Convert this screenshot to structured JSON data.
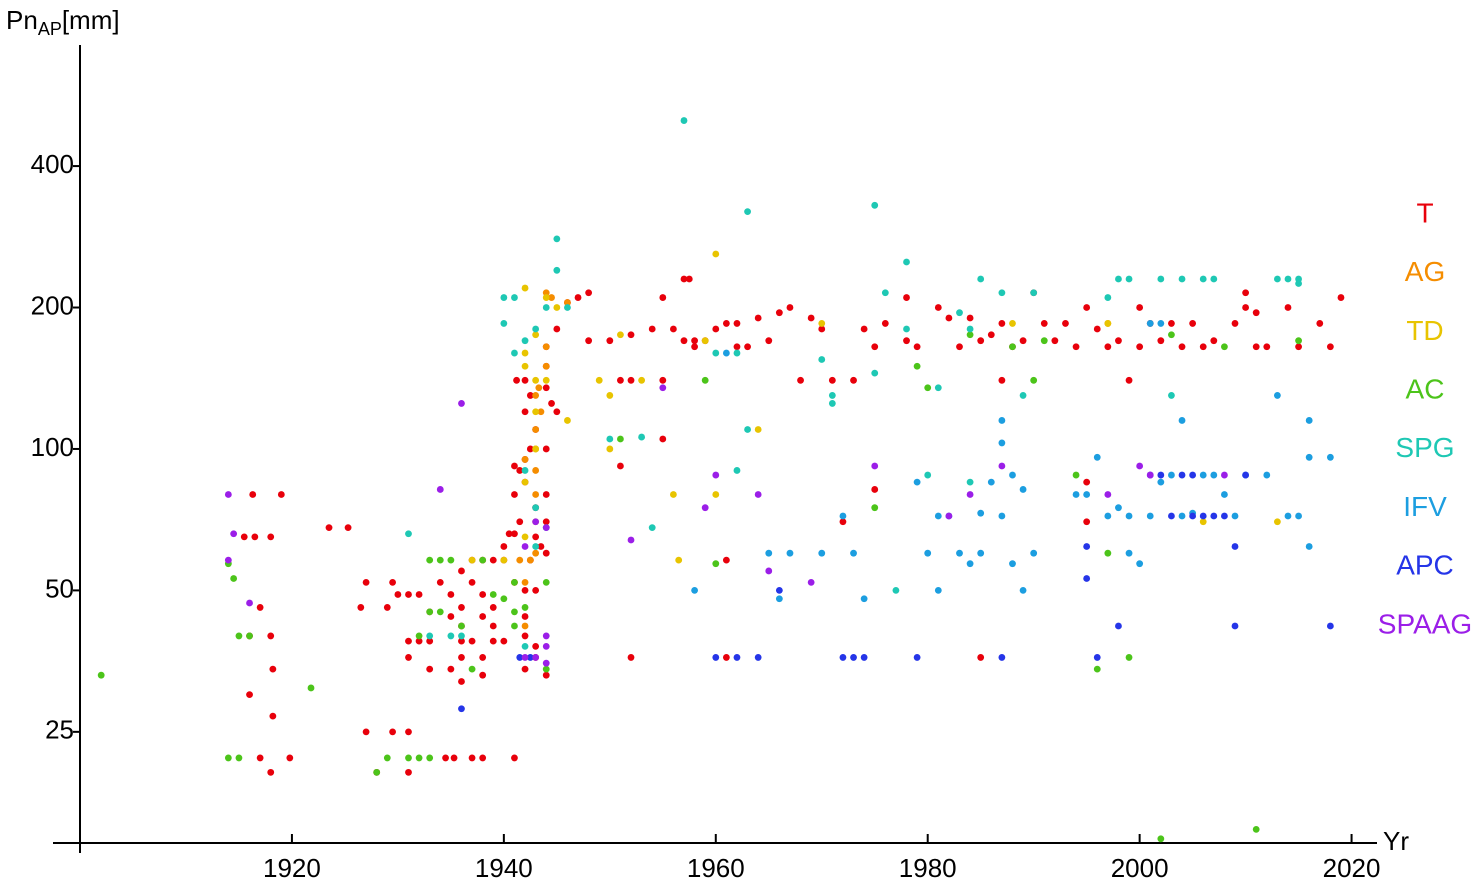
{
  "chart_data": {
    "type": "scatter",
    "ylabel_parts": [
      "Pn",
      "AP",
      "[mm]"
    ],
    "xlabel": "Yr",
    "log_y": true,
    "xlim": [
      1900,
      2022.4
    ],
    "ylim": [
      14.5,
      724
    ],
    "xticks": [
      1920,
      1940,
      1960,
      1980,
      2000,
      2020
    ],
    "yticks": [
      25,
      50,
      100,
      200,
      400
    ],
    "legend": "right",
    "series": [
      {
        "name": "T",
        "color": "#e8000b",
        "x": [
          1916.3,
          1919,
          1915.5,
          1916.5,
          1918,
          1917,
          1916,
          1918,
          1918.2,
          1916,
          1918.2,
          1917,
          1919.8,
          1918,
          1923.5,
          1925.3,
          1927,
          1926.5,
          1929.5,
          1930,
          1929,
          1931,
          1932,
          1933,
          1931,
          1932,
          1933,
          1931,
          1933,
          1927,
          1929.5,
          1931,
          1928,
          1931,
          1934.5,
          1935.3,
          1937,
          1938,
          1941,
          1934,
          1935,
          1936,
          1935,
          1936,
          1937,
          1937,
          1938,
          1939,
          1940,
          1938,
          1939,
          1938,
          1939,
          1936,
          1936,
          1937,
          1939,
          1940,
          1936,
          1938,
          1935,
          1936,
          1938,
          1940,
          1940.5,
          1941,
          1941.5,
          1941,
          1941,
          1941.5,
          1942,
          1942,
          1941.2,
          1942,
          1942.5,
          1942,
          1943,
          1942.5,
          1943,
          1943,
          1942.5,
          1943.5,
          1944,
          1944,
          1944,
          1944,
          1944.5,
          1944,
          1944,
          1945,
          1944,
          1945,
          1946,
          1947,
          1948,
          1948,
          1942,
          1941,
          1943,
          1942,
          1942,
          1943,
          1942,
          1943,
          1944,
          1951,
          1952,
          1951,
          1950,
          1952,
          1952,
          1954,
          1955,
          1955,
          1955,
          1956,
          1957,
          1957.5,
          1957,
          1958,
          1958,
          1959,
          1960,
          1961,
          1961,
          1962,
          1962,
          1963,
          1964,
          1965,
          1966,
          1967,
          1968,
          1969,
          1970,
          1971,
          1972,
          1973,
          1974,
          1975,
          1975,
          1976,
          1978,
          1978,
          1979,
          1981,
          1982,
          1983,
          1984,
          1985,
          1986,
          1987,
          1987,
          1988,
          1989,
          1990,
          1991,
          1992,
          1993,
          1994,
          1995,
          1995,
          1995,
          1996,
          1997,
          1998,
          1999,
          2000,
          2000,
          2001,
          2002,
          2003,
          2004,
          2005,
          2006,
          2007,
          2009,
          2010,
          2010,
          2011,
          2011,
          2012,
          2014,
          2015,
          2017,
          2018,
          2019,
          1985,
          1961
        ],
        "values": [
          80,
          80,
          65,
          65,
          65,
          46,
          40,
          40,
          34,
          30,
          27,
          22,
          22,
          20.5,
          68,
          68,
          52,
          46,
          52,
          49,
          46,
          49,
          49,
          45,
          39,
          39,
          39,
          36,
          34,
          25,
          25,
          25,
          20.5,
          20.5,
          22,
          22,
          22,
          22,
          22,
          52,
          49,
          46,
          44,
          55,
          52,
          58,
          58,
          58,
          58,
          49,
          46,
          44,
          42,
          42,
          39,
          39,
          39,
          39,
          36,
          36,
          34,
          32,
          33,
          62,
          66,
          66,
          70,
          80,
          92,
          90,
          85,
          95,
          140,
          140,
          130,
          120,
          110,
          100,
          75,
          65,
          58,
          62,
          60,
          70,
          80,
          100,
          125,
          135,
          150,
          120,
          165,
          180,
          205,
          210,
          215,
          170,
          50,
          52,
          50,
          44,
          40,
          38,
          34,
          36,
          33,
          140,
          140,
          92,
          170,
          175,
          36,
          180,
          210,
          140,
          105,
          180,
          230,
          230,
          170,
          170,
          165,
          170,
          180,
          185,
          58,
          165,
          185,
          165,
          190,
          170,
          195,
          200,
          140,
          190,
          180,
          140,
          70,
          140,
          180,
          165,
          82,
          185,
          210,
          170,
          165,
          200,
          190,
          165,
          190,
          170,
          175,
          140,
          185,
          165,
          170,
          215,
          185,
          170,
          185,
          165,
          200,
          85,
          70,
          180,
          165,
          170,
          140,
          200,
          165,
          185,
          170,
          185,
          165,
          185,
          165,
          170,
          185,
          200,
          215,
          195,
          165,
          165,
          200,
          165,
          185,
          165,
          210,
          36,
          36
        ]
      },
      {
        "name": "AG",
        "color": "#f58d00",
        "x": [
          1941,
          1942,
          1941.5,
          1942.5,
          1943,
          1943,
          1943,
          1943,
          1943,
          1943.5,
          1943,
          1943.3,
          1944,
          1944,
          1944,
          1944.5,
          1946,
          1943,
          1942,
          1942,
          1997
        ],
        "values": [
          52,
          52,
          58,
          58,
          60,
          80,
          90,
          100,
          110,
          120,
          130,
          135,
          150,
          165,
          215,
          210,
          205,
          70,
          42,
          95,
          185
        ]
      },
      {
        "name": "TD",
        "color": "#e8c400",
        "x": [
          1942,
          1942,
          1943,
          1943,
          1944,
          1944,
          1945,
          1946,
          1942,
          1949,
          1950,
          1950,
          1951,
          1953,
          1956,
          1956.5,
          1959,
          1960,
          1960,
          1964,
          1970,
          1988,
          1997,
          2006,
          2013,
          1937,
          1942,
          1942,
          1943,
          1943,
          1940
        ],
        "values": [
          220,
          160,
          175,
          120,
          140,
          210,
          200,
          115,
          150,
          140,
          130,
          100,
          175,
          140,
          80,
          58,
          170,
          80,
          260,
          110,
          185,
          185,
          185,
          70,
          70,
          58,
          85,
          65,
          140,
          100,
          58
        ]
      },
      {
        "name": "AC",
        "color": "#4cc41a",
        "x": [
          1902,
          1914,
          1915,
          1914,
          1914.5,
          1915,
          1916,
          1921.8,
          1928,
          1929,
          1931,
          1932,
          1933,
          1932,
          1933,
          1934,
          1935,
          1933,
          1934,
          1936,
          1937,
          1939,
          1940,
          1941,
          1941,
          1942,
          1944,
          1944,
          1951,
          1959,
          1960,
          1975,
          1979,
          1980,
          1984,
          1988,
          1990,
          1991,
          1994,
          1996,
          1997,
          1999,
          2002,
          2003,
          2008,
          2011,
          2015,
          1941,
          1938
        ],
        "values": [
          33,
          22,
          22,
          57,
          53,
          40,
          40,
          31,
          20.5,
          22,
          22,
          22,
          22,
          40,
          58,
          58,
          58,
          45,
          45,
          42,
          34,
          49,
          48,
          52,
          42,
          46,
          52,
          34,
          105,
          140,
          57,
          75,
          150,
          135,
          175,
          165,
          140,
          170,
          88,
          34,
          60,
          36,
          14.8,
          175,
          165,
          15.5,
          170,
          45,
          58
        ]
      },
      {
        "name": "SPG",
        "color": "#1ec8b4",
        "x": [
          1931,
          1940,
          1941,
          1940,
          1941,
          1942,
          1943,
          1944,
          1945,
          1945,
          1942,
          1943,
          1944,
          1950,
          1953,
          1954,
          1957,
          1960,
          1962,
          1963,
          1963,
          1962,
          1970,
          1971,
          1971,
          1975,
          1975,
          1976,
          1977,
          1978,
          1978,
          1981,
          1983,
          1984,
          1985,
          1987,
          1989,
          1990,
          1997,
          1998,
          1999,
          2002,
          2004,
          2006,
          2007,
          2013,
          2014,
          2015,
          2015,
          2003,
          1936,
          1935,
          1933,
          1943,
          1942,
          1946,
          1980,
          1984
        ],
        "values": [
          66,
          210,
          210,
          185,
          160,
          170,
          180,
          200,
          240,
          280,
          90,
          75,
          68,
          105,
          106,
          68,
          500,
          160,
          160,
          320,
          110,
          90,
          155,
          130,
          125,
          330,
          145,
          215,
          50,
          250,
          180,
          135,
          195,
          180,
          230,
          215,
          130,
          215,
          210,
          230,
          230,
          230,
          230,
          230,
          230,
          230,
          230,
          230,
          225,
          130,
          40,
          40,
          40,
          62,
          38,
          200,
          88,
          85
        ]
      },
      {
        "name": "IFV",
        "color": "#1c9ee0",
        "x": [
          1958,
          1961,
          1965,
          1966,
          1967,
          1970,
          1972,
          1973,
          1974,
          1979,
          1980,
          1981,
          1981,
          1982,
          1983,
          1984,
          1985,
          1985,
          1986,
          1987,
          1987,
          1987,
          1988,
          1988,
          1989,
          1989,
          1990,
          1994,
          1995,
          1996,
          1997,
          1998,
          1999,
          2000,
          2001,
          2002,
          2003,
          2004,
          2005,
          2006,
          2007,
          2008,
          2009,
          2010,
          2012,
          2013,
          2014,
          2015,
          2016,
          2016,
          2016,
          2018,
          2004,
          2001,
          2002,
          1999
        ],
        "values": [
          50,
          160,
          60,
          48,
          60,
          60,
          72,
          60,
          48,
          85,
          60,
          72,
          50,
          72,
          60,
          57,
          60,
          73,
          85,
          115,
          103,
          72,
          57,
          88,
          50,
          82,
          60,
          80,
          80,
          96,
          72,
          75,
          60,
          57,
          72,
          85,
          88,
          72,
          73,
          88,
          88,
          80,
          72,
          88,
          88,
          130,
          72,
          72,
          115,
          96,
          62,
          96,
          115,
          185,
          185,
          72
        ]
      },
      {
        "name": "APC",
        "color": "#2535e8",
        "x": [
          1936,
          1941.5,
          1942.5,
          1960,
          1962,
          1964,
          1966,
          1972,
          1973,
          1974,
          1979,
          1987,
          1995,
          1995,
          1996,
          1998,
          2001,
          2002,
          2004,
          2005,
          2006,
          2007,
          2008,
          2009,
          2009,
          2010,
          2018,
          2003,
          2005
        ],
        "values": [
          28,
          36,
          36,
          36,
          36,
          36,
          50,
          36,
          36,
          36,
          36,
          36,
          53,
          62,
          36,
          42,
          88,
          88,
          88,
          88,
          72,
          72,
          72,
          62,
          42,
          88,
          42,
          72,
          72
        ]
      },
      {
        "name": "SPAAG",
        "color": "#9b1ee8",
        "x": [
          1914,
          1914,
          1914.5,
          1916,
          1934,
          1936,
          1942,
          1943,
          1944,
          1944,
          1944,
          1943,
          1944,
          1952,
          1955,
          1959,
          1960,
          1964,
          1965,
          1969,
          1975,
          1982,
          1984,
          1987,
          1997,
          2000,
          2001,
          2008,
          1942
        ],
        "values": [
          80,
          58,
          66,
          47,
          82,
          125,
          36,
          36,
          35,
          40,
          38,
          70,
          68,
          64,
          135,
          75,
          88,
          80,
          55,
          52,
          92,
          72,
          80,
          92,
          80,
          92,
          88,
          88,
          62
        ]
      }
    ]
  }
}
